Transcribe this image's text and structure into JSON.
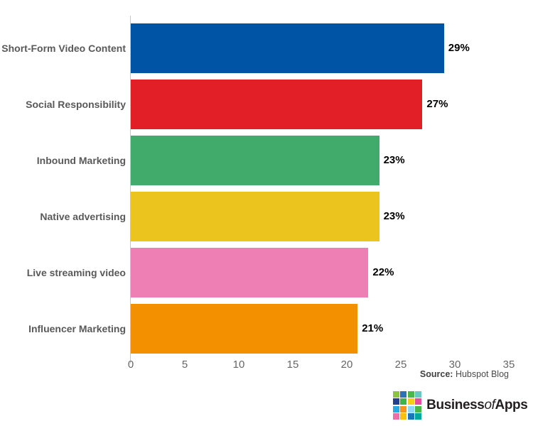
{
  "chart_data": {
    "type": "bar",
    "orientation": "horizontal",
    "title": "",
    "xlabel": "",
    "ylabel": "",
    "categories": [
      "Short-Form Video Content",
      "Social Responsibility",
      "Inbound Marketing",
      "Native advertising",
      "Live streaming video",
      "Influencer Marketing"
    ],
    "values": [
      29,
      27,
      23,
      23,
      22,
      21
    ],
    "value_labels": [
      "29%",
      "27%",
      "23%",
      "23%",
      "22%",
      "21%"
    ],
    "bar_colors": [
      "#0054a5",
      "#e21f26",
      "#41ab6b",
      "#ecc41e",
      "#ee7fb5",
      "#f39000"
    ],
    "xlim": [
      0,
      35
    ],
    "x_ticks": [
      "0",
      "5",
      "10",
      "15",
      "20",
      "25",
      "30",
      "35"
    ],
    "grid": false,
    "legend_position": "none"
  },
  "source": {
    "prefix": "Source:",
    "text": " Hubspot Blog"
  },
  "logo": {
    "word_business": "Business",
    "word_of": "of",
    "word_apps": "Apps",
    "grid_colors": [
      "#8cc63e",
      "#2d71b8",
      "#4bb749",
      "#69c8c1",
      "#23408f",
      "#3db54a",
      "#f5d017",
      "#e84e9b",
      "#27aae1",
      "#f7941d",
      "#8ed8f8",
      "#4bb749",
      "#ef6ea8",
      "#f9c00f",
      "#1b75bb",
      "#00a79d"
    ]
  },
  "colors": {
    "axis_line": "#c8c8c8",
    "category_label": "#595959",
    "tick_label": "#666666",
    "value_label": "#000000",
    "background": "#ffffff"
  }
}
